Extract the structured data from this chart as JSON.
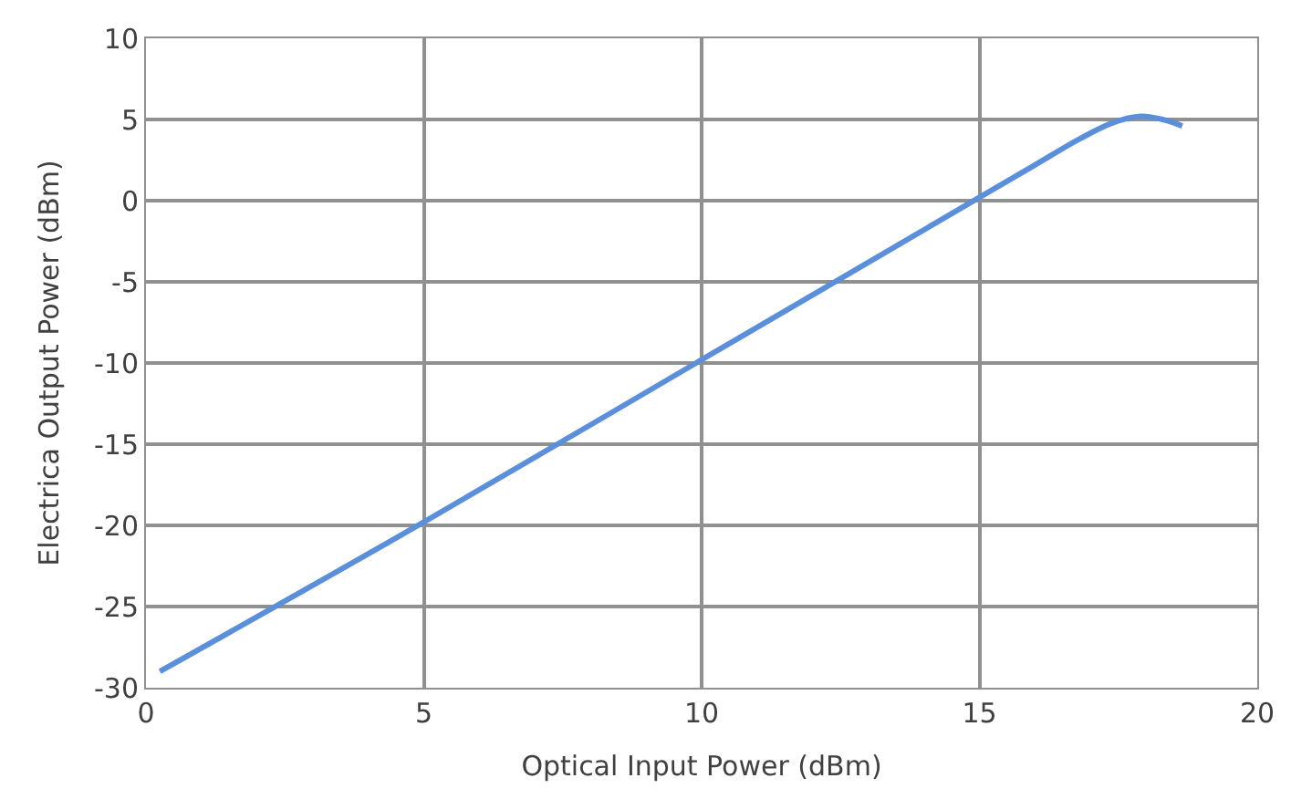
{
  "chart_data": {
    "type": "line",
    "xlabel": "Optical Input Power (dBm)",
    "ylabel": "Electrica Output Power (dBm)",
    "x": [
      0.25,
      5,
      10,
      15,
      16,
      16.8,
      17.4,
      17.9,
      18.3,
      18.65
    ],
    "series": [
      {
        "color": "#5b8fd9",
        "values": [
          -29,
          -19.8,
          -9.8,
          0.2,
          2.2,
          3.8,
          4.8,
          5.2,
          5.0,
          4.6
        ]
      }
    ],
    "xlim": [
      0,
      20
    ],
    "xticks": [
      0,
      5,
      10,
      15,
      20
    ],
    "ylim": [
      -30,
      10
    ],
    "yticks": [
      -30,
      -25,
      -20,
      -15,
      -10,
      -5,
      0,
      5,
      10
    ],
    "grid": true,
    "legend": false,
    "marker": "none",
    "line_style": "solid"
  }
}
